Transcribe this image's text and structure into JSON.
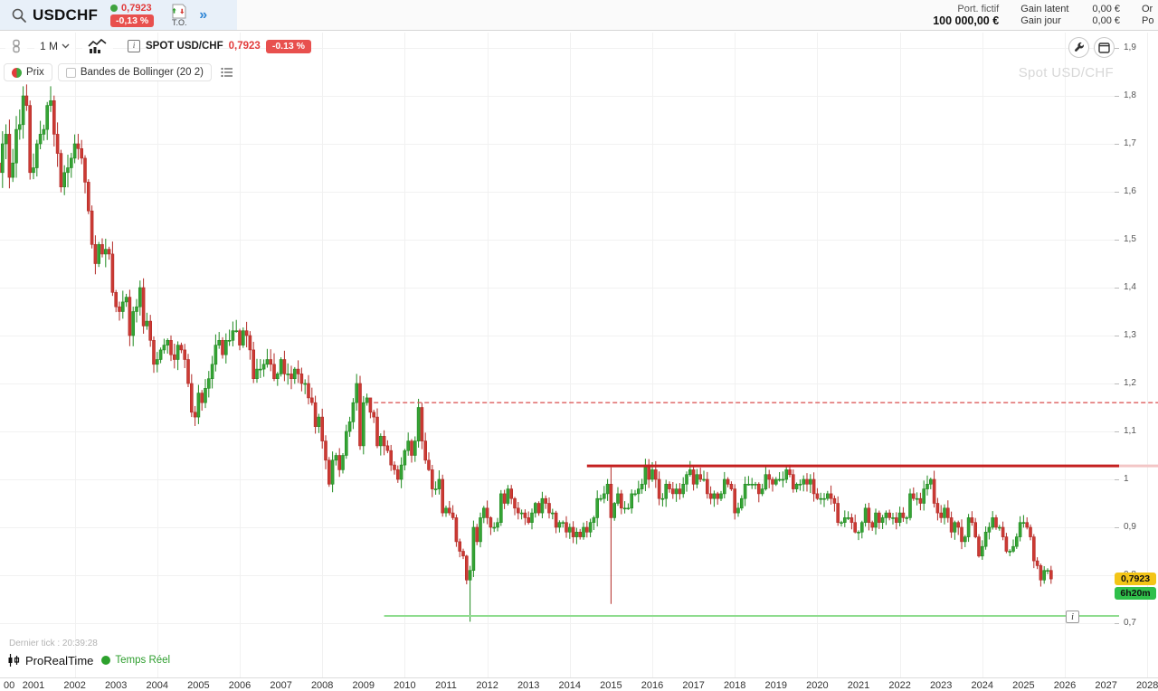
{
  "topbar": {
    "symbol": "USDCHF",
    "price": "0,7923",
    "change": "-0,13 %",
    "to_label": "T.O.",
    "more_label": "»",
    "portfolio": {
      "label": "Port. fictif",
      "value": "100 000,00 €"
    },
    "gains": [
      {
        "label": "Gain latent",
        "value": "0,00 €"
      },
      {
        "label": "Gain jour",
        "value": "0,00 €"
      }
    ],
    "clipped": [
      "Or",
      "Po"
    ]
  },
  "toolbar": {
    "timeframe": "1 M",
    "info_glyph": "i",
    "instrument": "SPOT USD/CHF",
    "price": "0,7923",
    "change": "-0.13 %"
  },
  "legend": {
    "prix": "Prix",
    "bollinger": "Bandes de Bollinger (20 2)"
  },
  "chart": {
    "watermark": "Spot USD/CHF",
    "price_badge": "0,7923",
    "time_badge": "6h20m",
    "line_info_glyph": "i",
    "y_axis": [
      {
        "label": "1,9",
        "price": 1.9
      },
      {
        "label": "1,8",
        "price": 1.8
      },
      {
        "label": "1,7",
        "price": 1.7
      },
      {
        "label": "1,6",
        "price": 1.6
      },
      {
        "label": "1,5",
        "price": 1.5
      },
      {
        "label": "1,4",
        "price": 1.4
      },
      {
        "label": "1,3",
        "price": 1.3
      },
      {
        "label": "1,2",
        "price": 1.2
      },
      {
        "label": "1,1",
        "price": 1.1
      },
      {
        "label": "1",
        "price": 1.0
      },
      {
        "label": "0,9",
        "price": 0.9
      },
      {
        "label": "0,8",
        "price": 0.8
      },
      {
        "label": "0,7",
        "price": 0.7
      }
    ],
    "x_axis": [
      "00",
      "2001",
      "2002",
      "2003",
      "2004",
      "2005",
      "2006",
      "2007",
      "2008",
      "2009",
      "2010",
      "2011",
      "2012",
      "2013",
      "2014",
      "2015",
      "2016",
      "2017",
      "2018",
      "2019",
      "2020",
      "2021",
      "2022",
      "2023",
      "2024",
      "2025",
      "2026",
      "2027",
      "2028"
    ],
    "colors": {
      "up_fill": "#35a435",
      "up_stroke": "#1f8a1f",
      "down_fill": "#cc3a34",
      "down_stroke": "#b22a26",
      "grid": "#f1f1f1",
      "tick": "#bbbbbb",
      "resistance": "#c41f1f",
      "resistance_pale": "#f3c6c6",
      "dashed_level": "#dd5c5c",
      "support": "#8fdc8f"
    }
  },
  "footer": {
    "last_tick": "Dernier tick : 20:39:28",
    "brand": "ProRealTime",
    "realtime": "Temps Réel"
  },
  "chart_data": {
    "type": "candlestick",
    "title": "Spot USD/CHF",
    "timeframe": "1M",
    "x_start": "2000-01",
    "x_end": "2025-09",
    "ylim": [
      0.66,
      1.93
    ],
    "y_ticks": [
      1.9,
      1.8,
      1.7,
      1.6,
      1.5,
      1.4,
      1.3,
      1.2,
      1.1,
      1.0,
      0.9,
      0.8,
      0.7
    ],
    "last_price": 0.7923,
    "last_change_pct": -0.13,
    "first_open": 1.6,
    "monthly_closes": [
      1.63,
      1.66,
      1.64,
      1.7,
      1.72,
      1.63,
      1.66,
      1.73,
      1.74,
      1.8,
      1.78,
      1.64,
      1.65,
      1.7,
      1.72,
      1.73,
      1.78,
      1.79,
      1.72,
      1.68,
      1.61,
      1.64,
      1.65,
      1.67,
      1.7,
      1.69,
      1.67,
      1.62,
      1.56,
      1.49,
      1.45,
      1.49,
      1.47,
      1.48,
      1.47,
      1.39,
      1.36,
      1.35,
      1.37,
      1.38,
      1.3,
      1.35,
      1.36,
      1.4,
      1.32,
      1.33,
      1.29,
      1.24,
      1.25,
      1.27,
      1.28,
      1.29,
      1.26,
      1.25,
      1.28,
      1.27,
      1.25,
      1.2,
      1.14,
      1.13,
      1.18,
      1.16,
      1.19,
      1.21,
      1.24,
      1.28,
      1.29,
      1.26,
      1.29,
      1.29,
      1.31,
      1.31,
      1.28,
      1.31,
      1.3,
      1.27,
      1.21,
      1.23,
      1.23,
      1.24,
      1.25,
      1.24,
      1.21,
      1.22,
      1.25,
      1.22,
      1.22,
      1.21,
      1.23,
      1.22,
      1.2,
      1.2,
      1.17,
      1.16,
      1.11,
      1.13,
      1.08,
      1.04,
      0.99,
      1.04,
      1.05,
      1.02,
      1.05,
      1.1,
      1.12,
      1.16,
      1.2,
      1.07,
      1.16,
      1.17,
      1.14,
      1.13,
      1.07,
      1.09,
      1.07,
      1.06,
      1.03,
      1.02,
      1.0,
      1.03,
      1.06,
      1.08,
      1.05,
      1.08,
      1.15,
      1.08,
      1.04,
      1.02,
      0.98,
      0.98,
      1.0,
      0.93,
      0.94,
      0.93,
      0.92,
      0.87,
      0.85,
      0.84,
      0.79,
      0.81,
      0.9,
      0.87,
      0.92,
      0.94,
      0.92,
      0.9,
      0.9,
      0.91,
      0.97,
      0.95,
      0.98,
      0.96,
      0.94,
      0.93,
      0.93,
      0.92,
      0.91,
      0.93,
      0.95,
      0.93,
      0.96,
      0.95,
      0.93,
      0.93,
      0.9,
      0.91,
      0.91,
      0.89,
      0.9,
      0.88,
      0.89,
      0.88,
      0.9,
      0.89,
      0.91,
      0.92,
      0.96,
      0.96,
      0.97,
      0.99,
      0.92,
      0.95,
      0.97,
      0.94,
      0.94,
      0.94,
      0.97,
      0.97,
      0.98,
      0.99,
      1.03,
      1.0,
      1.02,
      1.0,
      0.96,
      0.96,
      0.99,
      0.98,
      0.97,
      0.98,
      0.97,
      0.99,
      1.01,
      1.02,
      0.99,
      1.01,
      1.0,
      1.0,
      0.97,
      0.96,
      0.97,
      0.96,
      0.97,
      1.0,
      0.99,
      0.98,
      0.93,
      0.94,
      0.96,
      0.99,
      0.99,
      0.99,
      0.99,
      0.97,
      0.98,
      1.01,
      1.0,
      0.99,
      1.0,
      1.0,
      1.0,
      1.02,
      1.01,
      0.98,
      0.99,
      0.99,
      1.0,
      0.99,
      1.0,
      0.97,
      0.96,
      0.96,
      0.96,
      0.97,
      0.96,
      0.95,
      0.91,
      0.91,
      0.92,
      0.92,
      0.91,
      0.89,
      0.89,
      0.91,
      0.94,
      0.91,
      0.9,
      0.93,
      0.91,
      0.92,
      0.93,
      0.92,
      0.92,
      0.91,
      0.93,
      0.92,
      0.92,
      0.97,
      0.96,
      0.96,
      0.95,
      0.98,
      0.99,
      1.0,
      0.95,
      0.93,
      0.92,
      0.94,
      0.92,
      0.89,
      0.91,
      0.9,
      0.87,
      0.88,
      0.92,
      0.91,
      0.88,
      0.84,
      0.86,
      0.89,
      0.9,
      0.92,
      0.9,
      0.9,
      0.88,
      0.85,
      0.85,
      0.86,
      0.88,
      0.91,
      0.91,
      0.9,
      0.88,
      0.83,
      0.82,
      0.79,
      0.81,
      0.81,
      0.7923
    ],
    "specials": {
      "9": {
        "high": 1.82
      },
      "17": {
        "high": 1.82
      },
      "106": {
        "high": 1.22
      },
      "110": {
        "high": 1.158
      },
      "124": {
        "high": 1.168
      },
      "139": {
        "low": 0.703
      },
      "180": {
        "high": 1.025,
        "low": 0.74
      }
    },
    "levels": [
      {
        "name": "resistance",
        "style": "solid",
        "price": 1.028,
        "start": "2014-06"
      },
      {
        "name": "former-resistance",
        "style": "dashed",
        "price": 1.16,
        "start": "2009-04"
      },
      {
        "name": "support",
        "style": "solid",
        "price": 0.715,
        "start": "2009-07"
      }
    ]
  }
}
